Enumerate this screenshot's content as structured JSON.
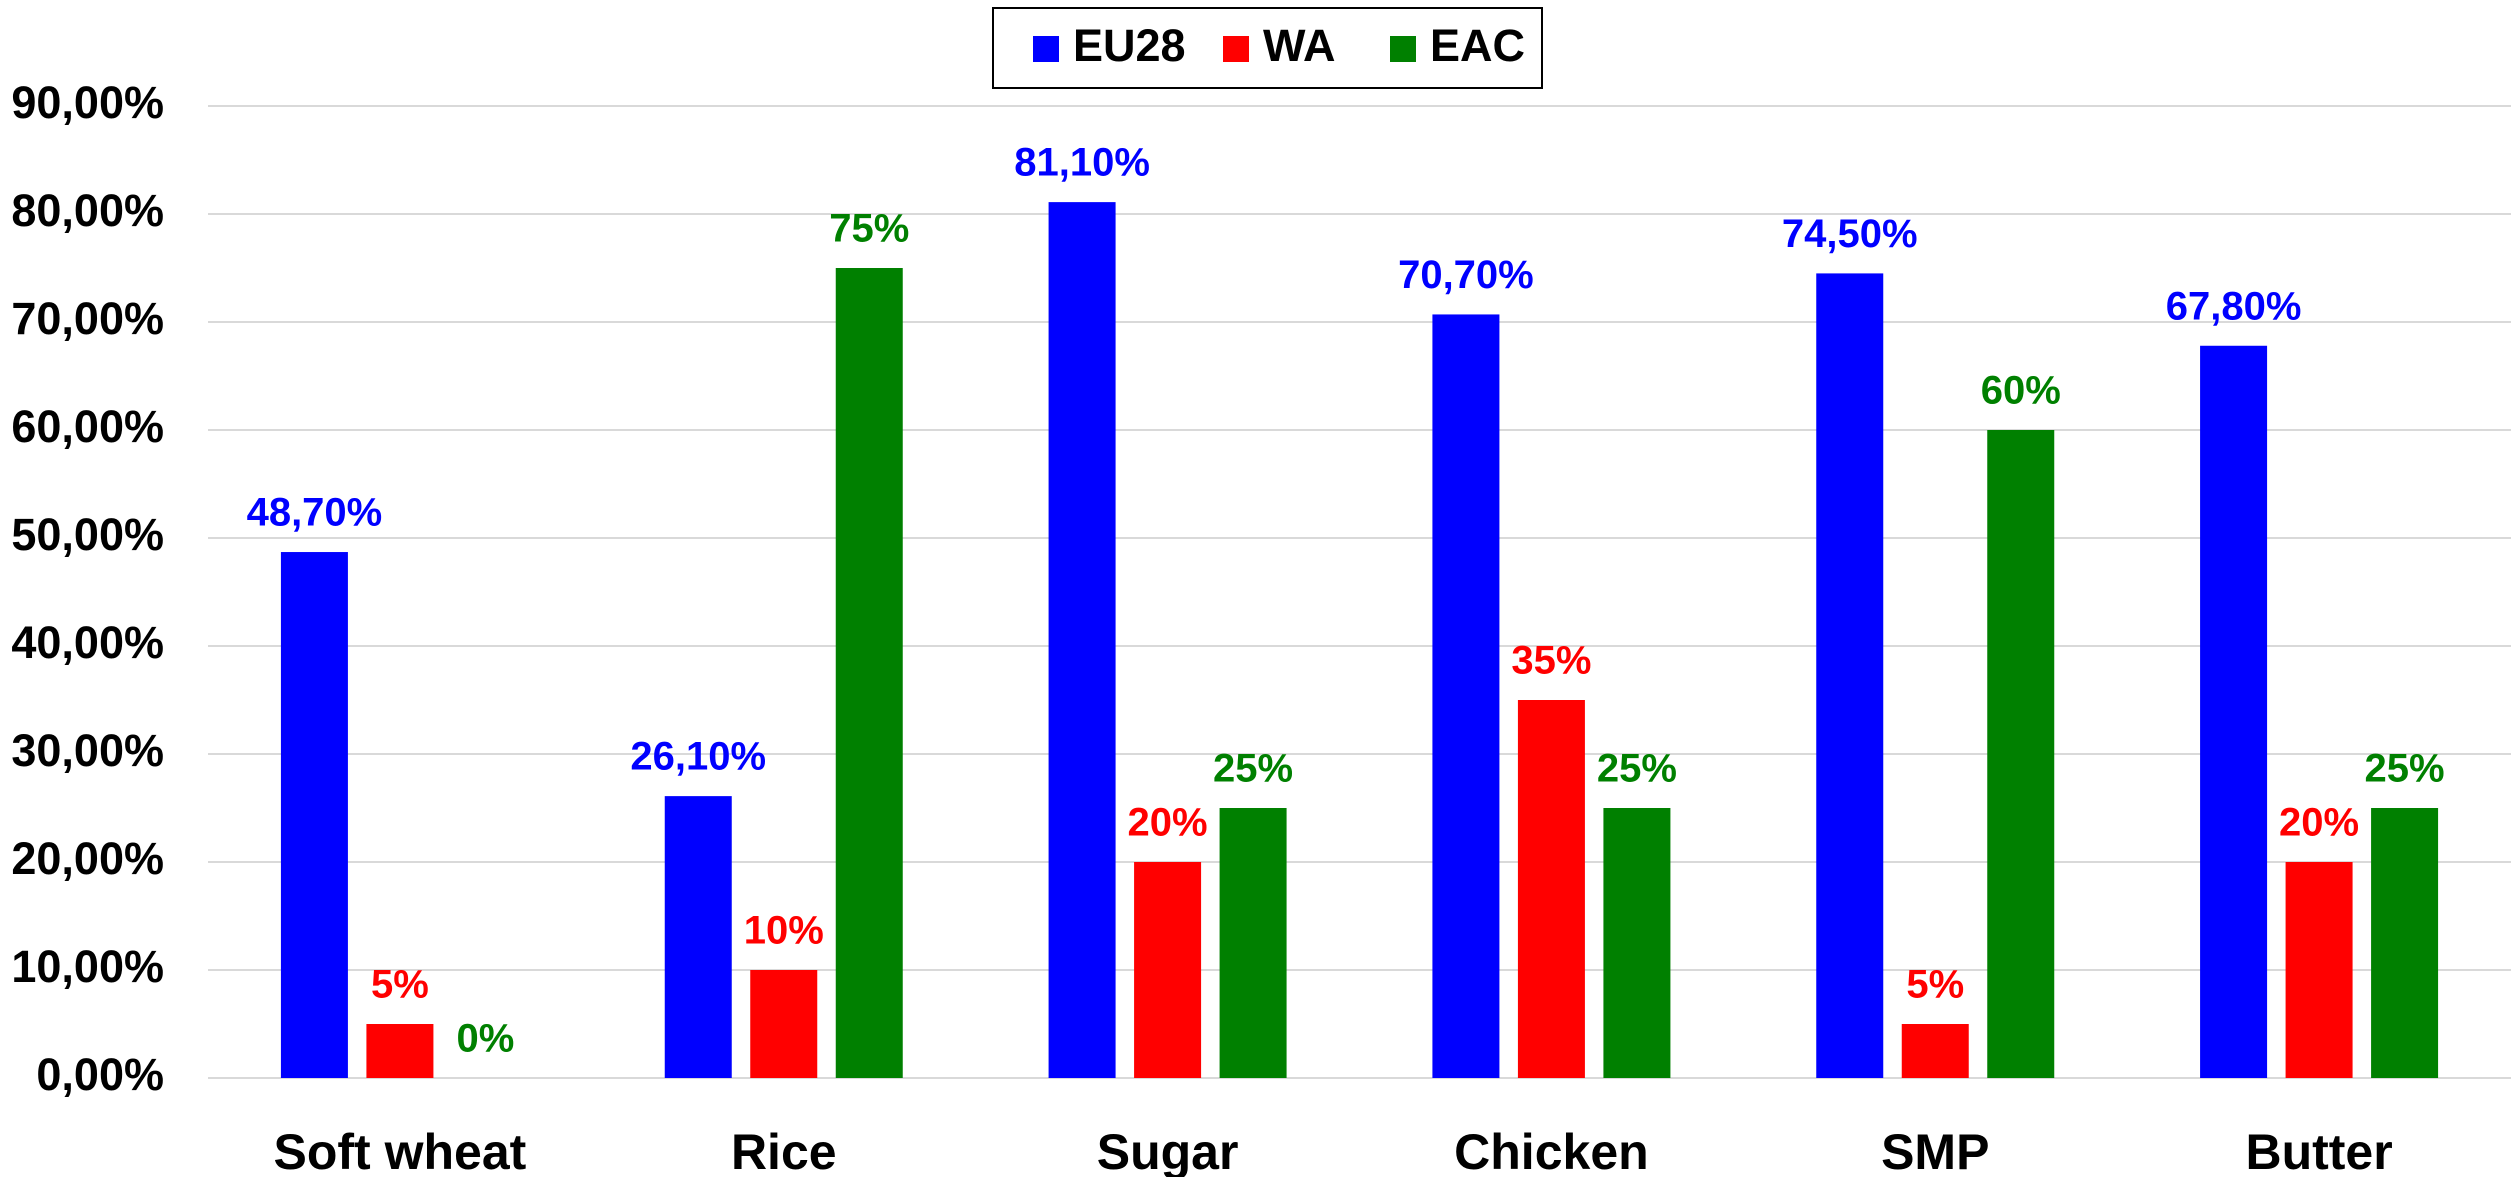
{
  "chart_data": {
    "type": "bar",
    "categories": [
      "Soft wheat",
      "Rice",
      "Sugar",
      "Chicken",
      "SMP",
      "Butter"
    ],
    "series": [
      {
        "name": "EU28",
        "color": "#0000ff",
        "values": [
          48.7,
          26.1,
          81.1,
          70.7,
          74.5,
          67.8
        ],
        "value_labels": [
          "48,70%",
          "26,10%",
          "81,10%",
          "70,70%",
          "74,50%",
          "67,80%"
        ]
      },
      {
        "name": "WA",
        "color": "#ff0000",
        "values": [
          5,
          10,
          20,
          35,
          5,
          20
        ],
        "value_labels": [
          "5%",
          "10%",
          "20%",
          "35%",
          "5%",
          "20%"
        ]
      },
      {
        "name": "EAC",
        "color": "#008000",
        "values": [
          0,
          75,
          25,
          25,
          60,
          25
        ],
        "value_labels": [
          "0%",
          "75%",
          "25%",
          "25%",
          "60%",
          "25%"
        ]
      }
    ],
    "ylim": [
      0,
      90
    ],
    "yticks": [
      {
        "value": 0,
        "label": "0,00%"
      },
      {
        "value": 10,
        "label": "10,00%"
      },
      {
        "value": 20,
        "label": "20,00%"
      },
      {
        "value": 30,
        "label": "30,00%"
      },
      {
        "value": 40,
        "label": "40,00%"
      },
      {
        "value": 50,
        "label": "50,00%"
      },
      {
        "value": 60,
        "label": "60,00%"
      },
      {
        "value": 70,
        "label": "70,00%"
      },
      {
        "value": 80,
        "label": "80,00%"
      },
      {
        "value": 90,
        "label": "90,00%"
      }
    ],
    "grid": true,
    "legend": "top"
  }
}
